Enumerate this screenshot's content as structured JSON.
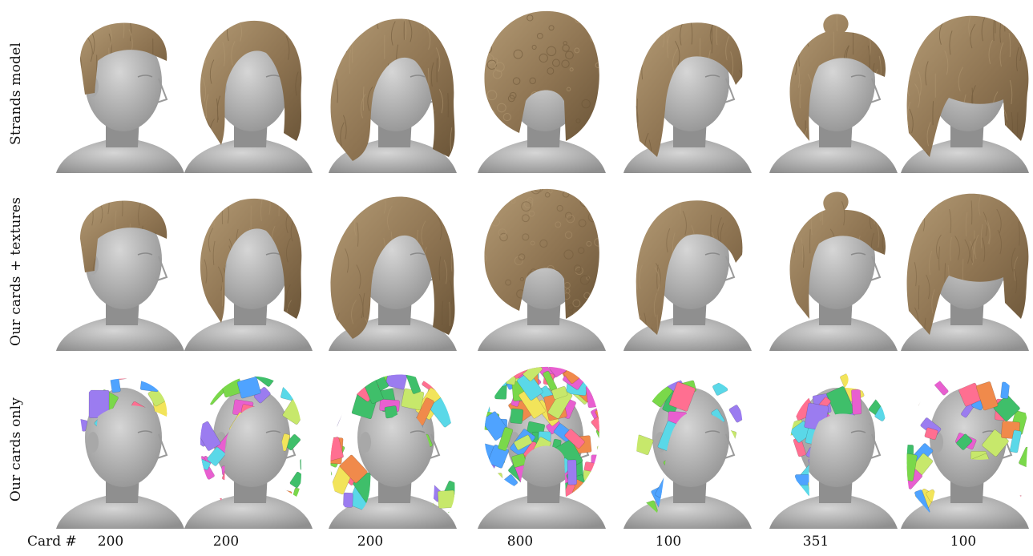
{
  "figure": {
    "row_labels": [
      "Strands model",
      "Our cards + textures",
      "Our cards only"
    ],
    "count_label": "Card #",
    "columns": [
      {
        "card_count": "200",
        "hair": "short-slick"
      },
      {
        "card_count": "200",
        "hair": "wavy-bob"
      },
      {
        "card_count": "200",
        "hair": "long-wavy"
      },
      {
        "card_count": "800",
        "hair": "afro-curly"
      },
      {
        "card_count": "100",
        "hair": "layered-medium"
      },
      {
        "card_count": "351",
        "hair": "bun-updo"
      },
      {
        "card_count": "100",
        "hair": "straight-bob-bangs"
      }
    ],
    "colors": {
      "hair": "#8e7452",
      "hair_dark": "#6b5538",
      "hair_light": "#b39a74",
      "skin": "#b9b9b9",
      "skin_shade": "#8f8f8f",
      "card_palette": [
        "#e85fd0",
        "#7ad84a",
        "#f2e45a",
        "#5ad8e8",
        "#f08a4b",
        "#9b7cf0",
        "#3fbf6a",
        "#ff6f91",
        "#4fa3ff",
        "#c7e86b"
      ]
    }
  }
}
